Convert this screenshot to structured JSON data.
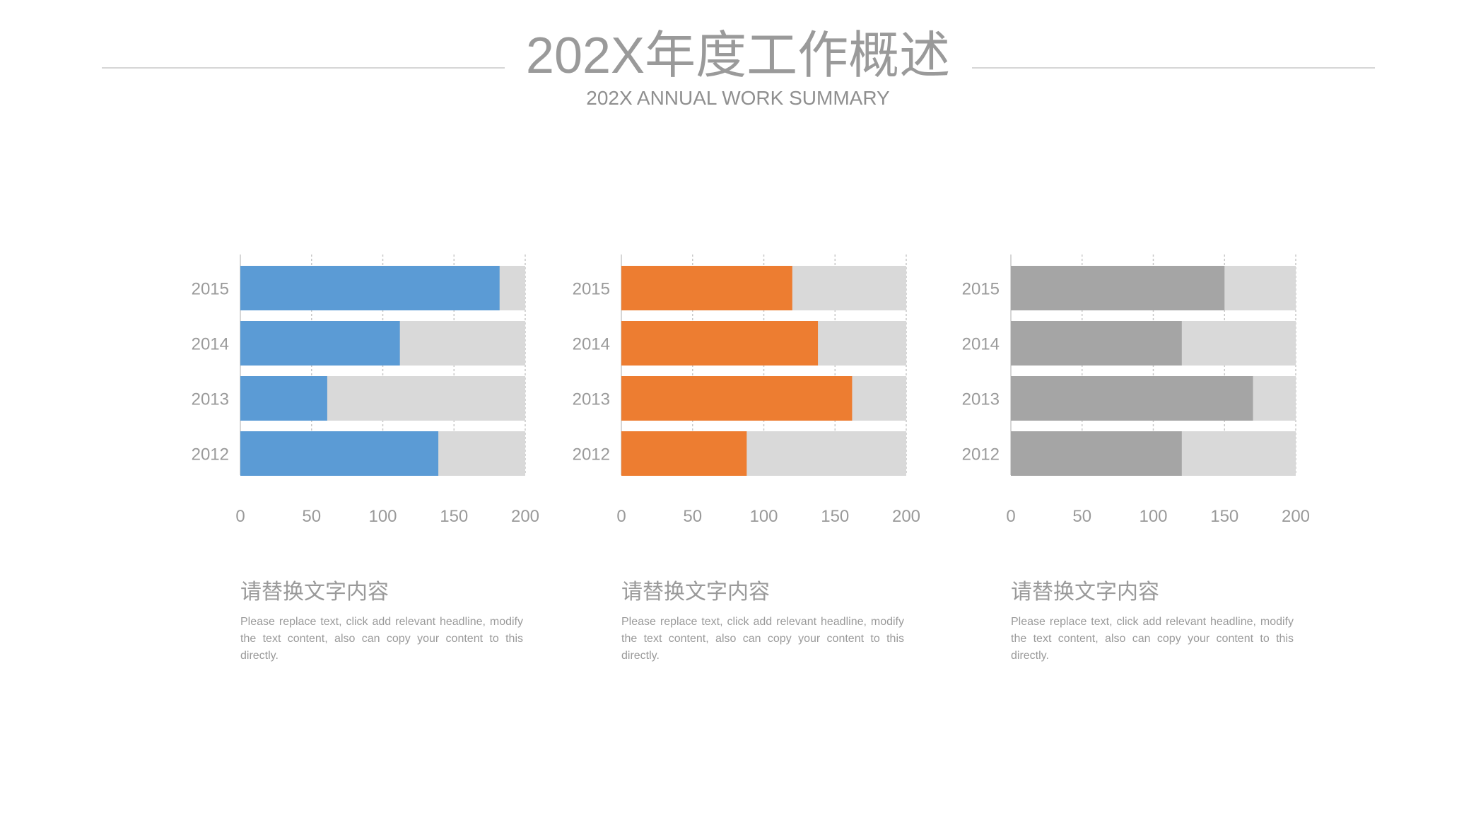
{
  "header": {
    "title": "202X年度工作概述",
    "subtitle": "202X ANNUAL WORK SUMMARY"
  },
  "colors": {
    "track": "#d9d9d9",
    "axis": "#c8c8c8",
    "label": "#9a9a9a"
  },
  "chart_data": [
    {
      "type": "bar",
      "orientation": "horizontal",
      "categories": [
        "2015",
        "2014",
        "2013",
        "2012"
      ],
      "values": [
        182,
        112,
        61,
        139
      ],
      "track_max": 200,
      "xlim": [
        0,
        200
      ],
      "xticks": [
        0,
        50,
        100,
        150,
        200
      ],
      "color": "#5b9bd5",
      "grid": true
    },
    {
      "type": "bar",
      "orientation": "horizontal",
      "categories": [
        "2015",
        "2014",
        "2013",
        "2012"
      ],
      "values": [
        120,
        138,
        162,
        88
      ],
      "track_max": 200,
      "xlim": [
        0,
        200
      ],
      "xticks": [
        0,
        50,
        100,
        150,
        200
      ],
      "color": "#ed7d31",
      "grid": true
    },
    {
      "type": "bar",
      "orientation": "horizontal",
      "categories": [
        "2015",
        "2014",
        "2013",
        "2012"
      ],
      "values": [
        150,
        120,
        170,
        120
      ],
      "track_max": 200,
      "xlim": [
        0,
        200
      ],
      "xticks": [
        0,
        50,
        100,
        150,
        200
      ],
      "color": "#a5a5a5",
      "grid": true
    }
  ],
  "captions": [
    {
      "heading": "请替换文字内容",
      "body": "Please replace text, click add relevant headline, modify the text content, also can copy your content to this directly."
    },
    {
      "heading": "请替换文字内容",
      "body": "Please replace text, click add relevant headline, modify the text content, also can copy your content to this directly."
    },
    {
      "heading": "请替换文字内容",
      "body": "Please replace text, click add relevant headline, modify the text content, also can copy your content to this directly."
    }
  ]
}
